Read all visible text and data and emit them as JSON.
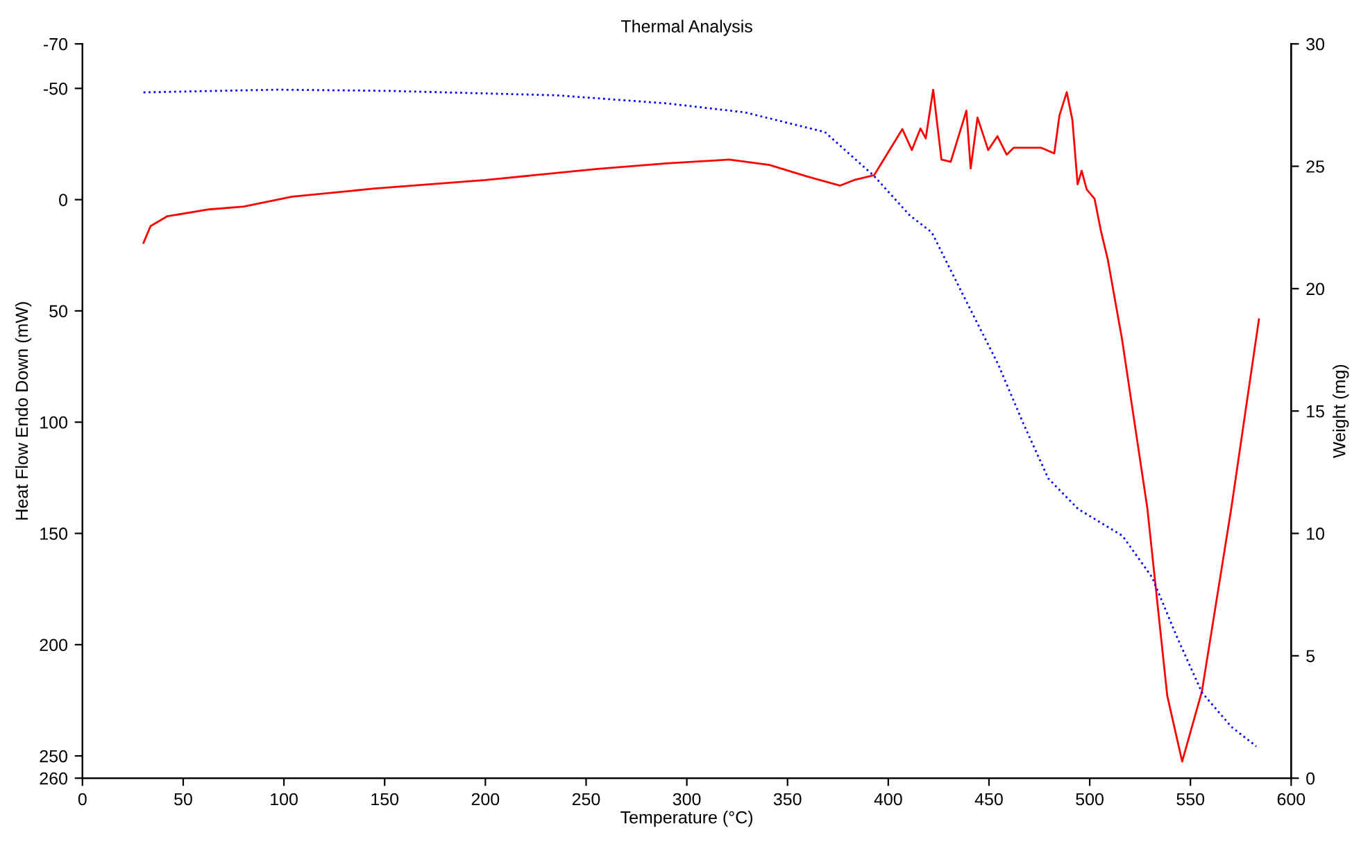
{
  "chart_data": {
    "type": "line",
    "title": "Thermal Analysis",
    "xlabel": "Temperature (°C)",
    "ylabel": "Heat Flow Endo Down (mW)",
    "y2label": "Weight (mg)",
    "xlim": [
      0,
      600
    ],
    "xticks": [
      0,
      50,
      100,
      150,
      200,
      250,
      300,
      350,
      400,
      450,
      500,
      550,
      600
    ],
    "ylim": [
      260,
      -70
    ],
    "yticks": [
      -70,
      -50,
      0,
      50,
      100,
      150,
      200,
      250,
      260
    ],
    "y2lim": [
      0,
      30
    ],
    "y2ticks": [
      0,
      5,
      10,
      15,
      20,
      25,
      30
    ],
    "grid": false,
    "legend": false,
    "series": [
      {
        "color": "#ff0000",
        "line_style": "solid",
        "x": [
          30.3,
          33.8,
          42,
          62.7,
          80,
          104,
          145,
          200,
          255.6,
          290,
          321,
          341,
          359,
          376,
          383,
          393,
          407,
          411.7,
          416,
          418.6,
          422.3,
          426.4,
          431,
          438.8,
          440.9,
          444.3,
          449.6,
          454.2,
          458.8,
          462.2,
          476,
          482.4,
          485,
          488.6,
          491.4,
          494,
          496,
          498.5,
          502.4,
          505.6,
          509,
          516,
          528.6,
          538.5,
          545.9,
          555.7,
          570.3,
          584
        ],
        "values": [
          19.4,
          11.9,
          7.5,
          4.4,
          3.1,
          -1.3,
          -5,
          -8.8,
          -13.8,
          -16.3,
          -18,
          -15.6,
          -10.6,
          -6.3,
          -8.8,
          -11,
          -31.7,
          -22.3,
          -32,
          -27.5,
          -49.4,
          -18,
          -17,
          -40,
          -14,
          -36.9,
          -22.3,
          -28.5,
          -20.2,
          -23.3,
          -23.3,
          -20.8,
          -37.9,
          -48.3,
          -35.8,
          -6.9,
          -13,
          -4.6,
          -0.4,
          14.2,
          27,
          62.5,
          138.6,
          223,
          252.5,
          221,
          138.6,
          53.8
        ]
      },
      {
        "color": "#0000ff",
        "line_style": "dotted",
        "axis": "y2",
        "x": [
          30.3,
          97,
          152,
          235,
          290,
          329,
          368.5,
          393,
          410.6,
          421.6,
          437.4,
          454.6,
          467,
          479.4,
          494.2,
          516.3,
          531,
          543.4,
          555.7,
          570.3,
          582.7
        ],
        "values": [
          28.02,
          28.13,
          28.08,
          27.9,
          27.57,
          27.2,
          26.4,
          24.6,
          23.0,
          22.3,
          19.7,
          16.9,
          14.5,
          12.25,
          11.0,
          9.9,
          8.2,
          5.75,
          3.5,
          2.1,
          1.3
        ]
      }
    ]
  }
}
